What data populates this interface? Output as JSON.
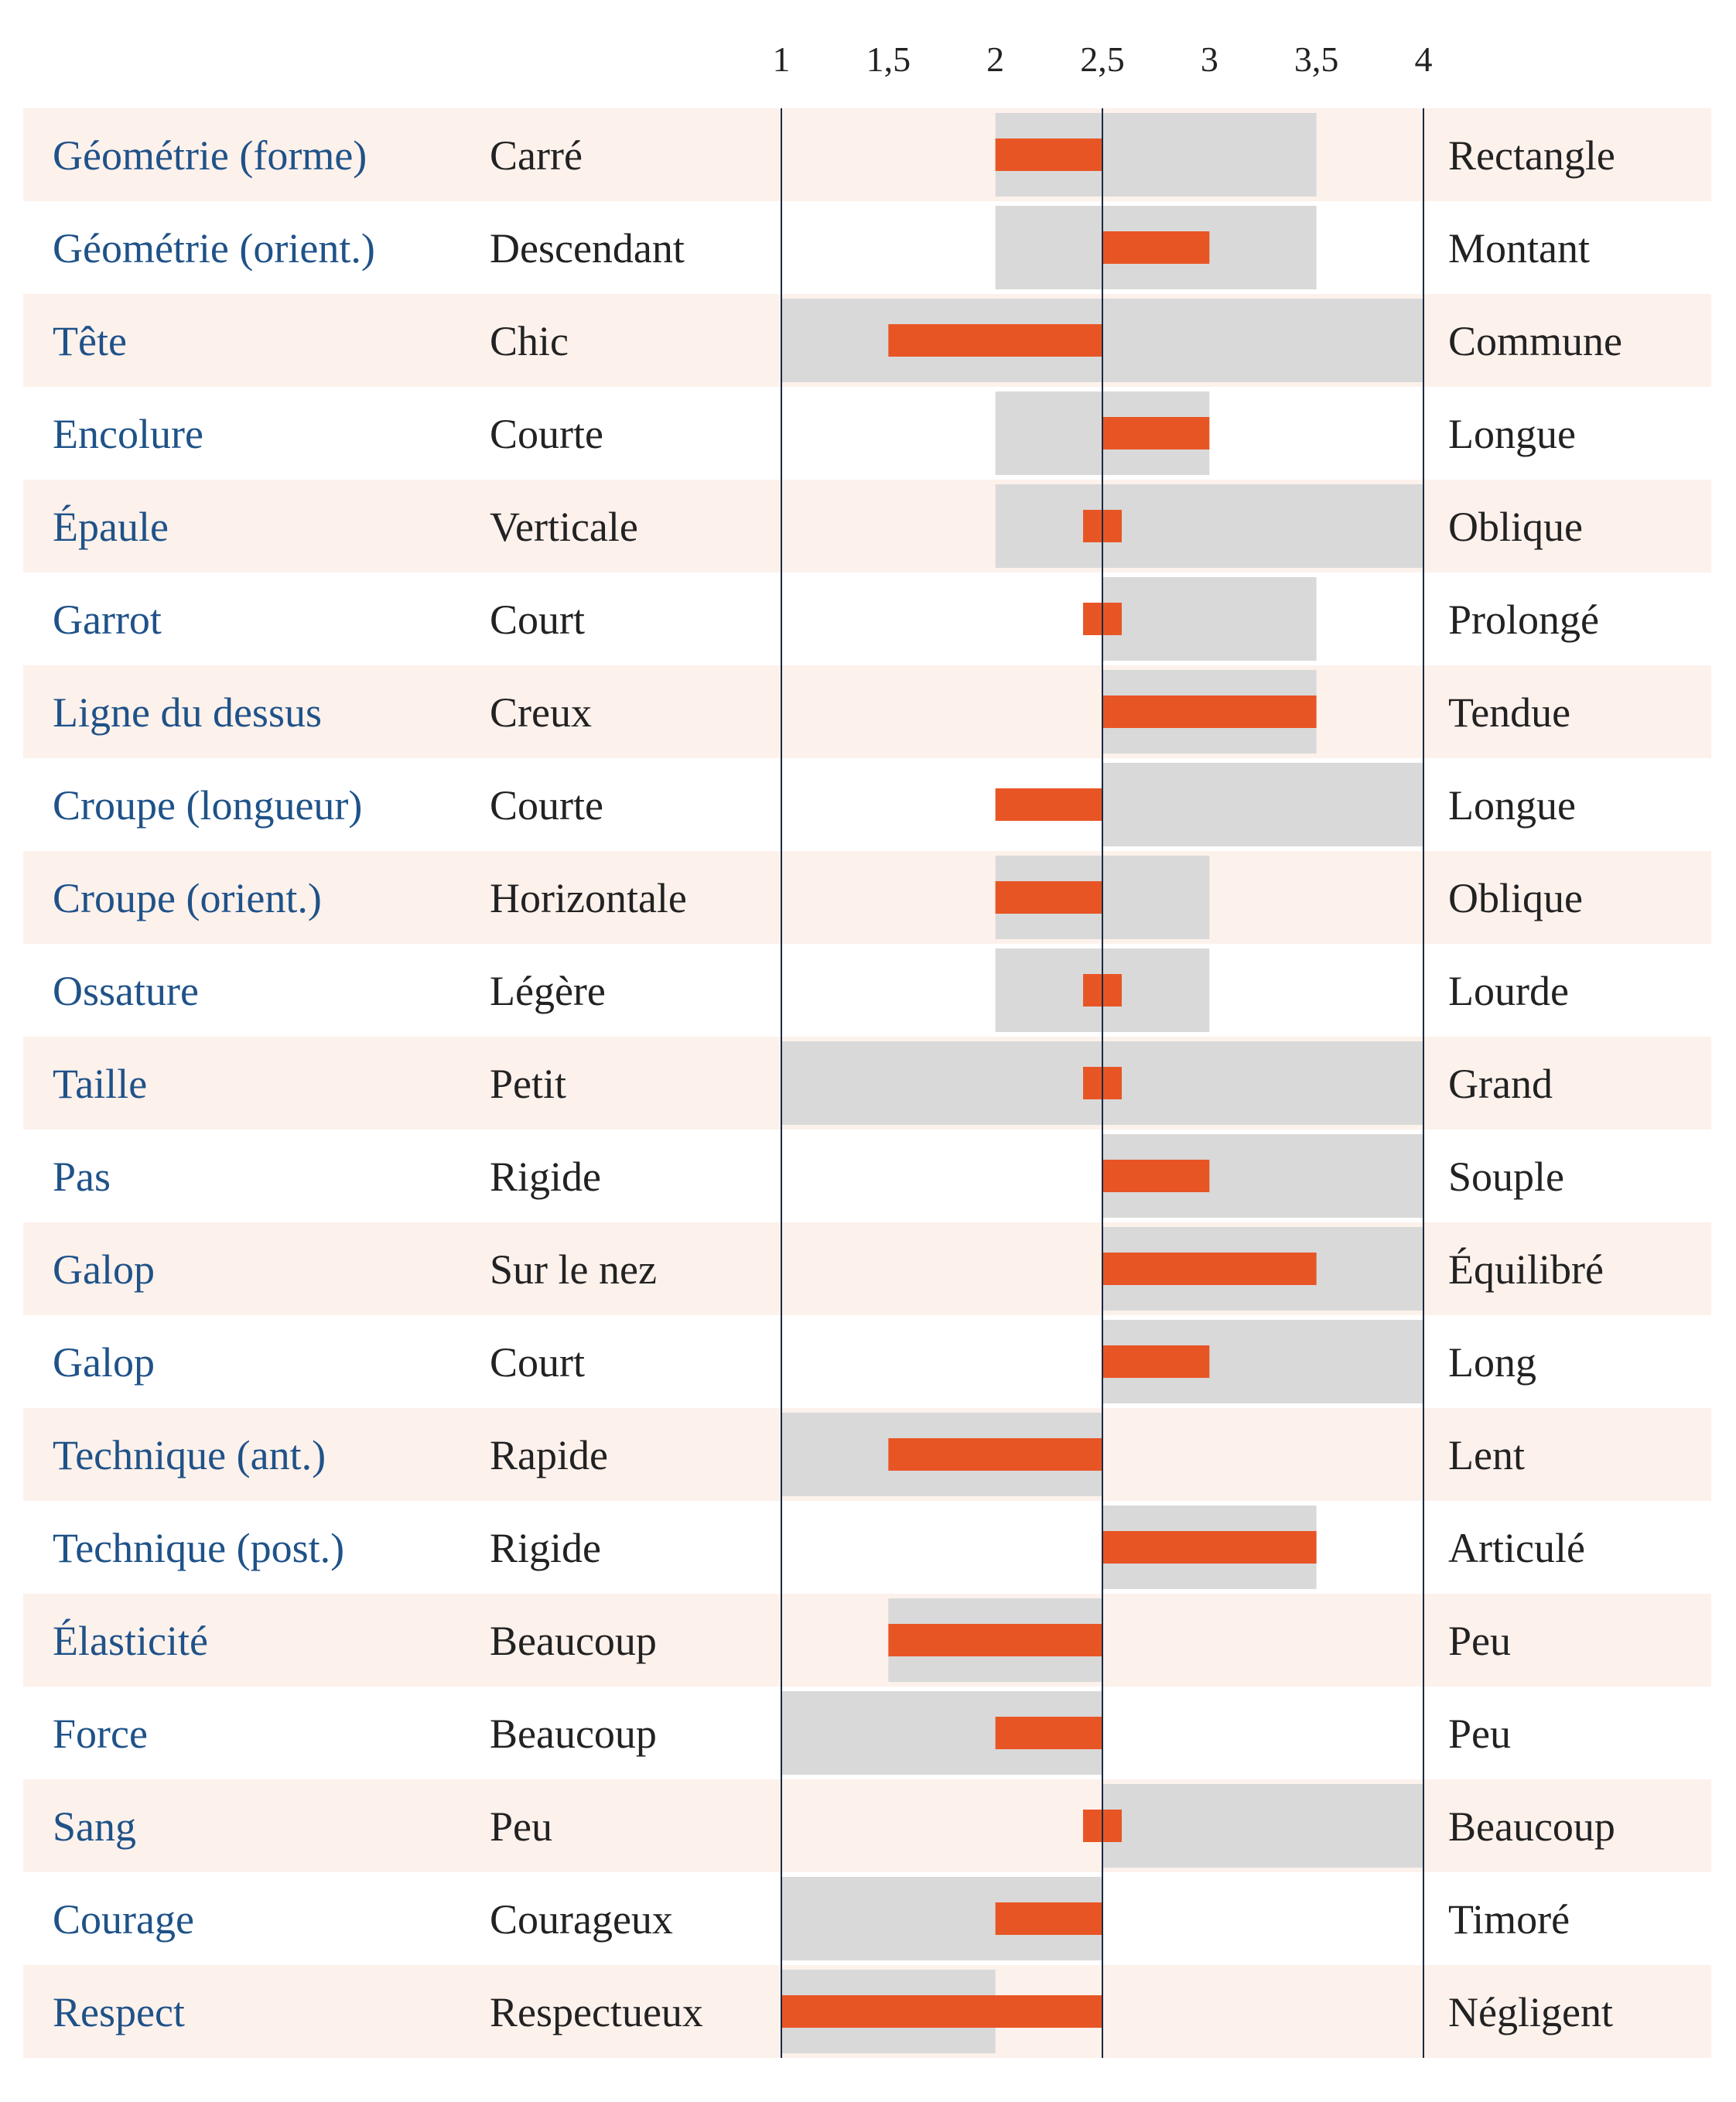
{
  "chart_data": {
    "type": "bar",
    "subtype": "diverging-range",
    "x_ticks": [
      "1",
      "1,5",
      "2",
      "2,5",
      "3",
      "3,5",
      "4"
    ],
    "xlim": [
      1,
      4
    ],
    "center": 2.5,
    "grid": false,
    "colors": {
      "bar": "#e85525",
      "range": "#d9d9d9",
      "row_alt": "#fdf1ec",
      "trait_text": "#1f5288",
      "pole_text": "#222222",
      "axis_line": "#1a2a3f"
    },
    "rows": [
      {
        "trait": "Géométrie (forme)",
        "left": "Carré",
        "right": "Rectangle",
        "value": 2.0,
        "range": [
          2.0,
          3.5
        ]
      },
      {
        "trait": "Géométrie (orient.)",
        "left": "Descendant",
        "right": "Montant",
        "value": 3.0,
        "range": [
          2.0,
          3.5
        ]
      },
      {
        "trait": "Tête",
        "left": "Chic",
        "right": "Commune",
        "value": 1.5,
        "range": [
          1.0,
          4.0
        ]
      },
      {
        "trait": "Encolure",
        "left": "Courte",
        "right": "Longue",
        "value": 3.0,
        "range": [
          2.0,
          3.0
        ]
      },
      {
        "trait": "Épaule",
        "left": "Verticale",
        "right": "Oblique",
        "value": 2.5,
        "range": [
          2.0,
          4.0
        ]
      },
      {
        "trait": "Garrot",
        "left": "Court",
        "right": "Prolongé",
        "value": 2.5,
        "range": [
          2.5,
          3.5
        ]
      },
      {
        "trait": "Ligne du dessus",
        "left": "Creux",
        "right": "Tendue",
        "value": 3.5,
        "range": [
          2.5,
          3.5
        ]
      },
      {
        "trait": "Croupe (longueur)",
        "left": "Courte",
        "right": "Longue",
        "value": 2.0,
        "range": [
          2.5,
          4.0
        ]
      },
      {
        "trait": "Croupe (orient.)",
        "left": "Horizontale",
        "right": "Oblique",
        "value": 2.0,
        "range": [
          2.0,
          3.0
        ]
      },
      {
        "trait": "Ossature",
        "left": "Légère",
        "right": "Lourde",
        "value": 2.5,
        "range": [
          2.0,
          3.0
        ]
      },
      {
        "trait": "Taille",
        "left": "Petit",
        "right": "Grand",
        "value": 2.5,
        "range": [
          1.0,
          4.0
        ]
      },
      {
        "trait": "Pas",
        "left": "Rigide",
        "right": "Souple",
        "value": 3.0,
        "range": [
          2.5,
          4.0
        ]
      },
      {
        "trait": "Galop",
        "left": "Sur le nez",
        "right": "Équilibré",
        "value": 3.5,
        "range": [
          2.5,
          4.0
        ]
      },
      {
        "trait": "Galop",
        "left": "Court",
        "right": "Long",
        "value": 3.0,
        "range": [
          2.5,
          4.0
        ]
      },
      {
        "trait": "Technique (ant.)",
        "left": "Rapide",
        "right": "Lent",
        "value": 1.5,
        "range": [
          1.0,
          2.5
        ]
      },
      {
        "trait": "Technique (post.)",
        "left": "Rigide",
        "right": "Articulé",
        "value": 3.5,
        "range": [
          2.5,
          3.5
        ]
      },
      {
        "trait": "Élasticité",
        "left": "Beaucoup",
        "right": "Peu",
        "value": 1.5,
        "range": [
          1.5,
          2.5
        ]
      },
      {
        "trait": "Force",
        "left": "Beaucoup",
        "right": "Peu",
        "value": 2.0,
        "range": [
          1.0,
          2.5
        ]
      },
      {
        "trait": "Sang",
        "left": "Peu",
        "right": "Beaucoup",
        "value": 2.5,
        "range": [
          2.5,
          4.0
        ]
      },
      {
        "trait": "Courage",
        "left": "Courageux",
        "right": "Timoré",
        "value": 2.0,
        "range": [
          1.0,
          2.5
        ]
      },
      {
        "trait": "Respect",
        "left": "Respectueux",
        "right": "Négligent",
        "value": 1.0,
        "range": [
          1.0,
          2.0
        ]
      }
    ]
  }
}
